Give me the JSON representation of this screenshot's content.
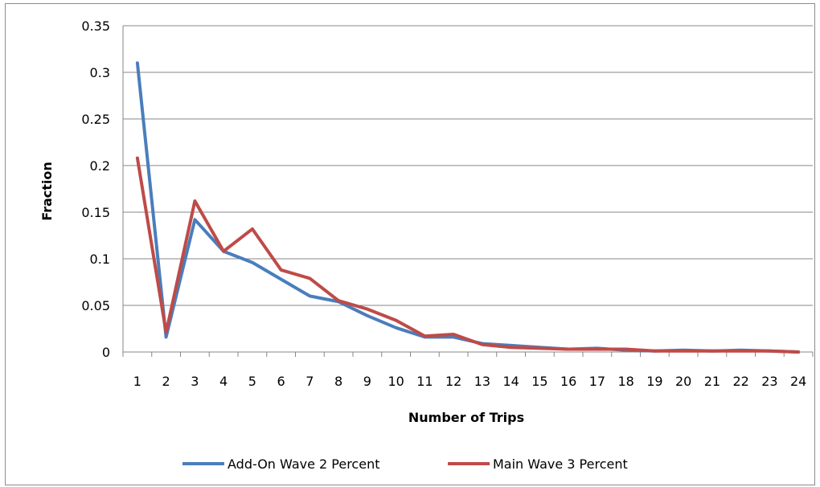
{
  "chart_data": {
    "type": "line",
    "title": "",
    "xlabel": "Number of Trips",
    "ylabel": "Fraction",
    "categories": [
      "1",
      "2",
      "3",
      "4",
      "5",
      "6",
      "7",
      "8",
      "9",
      "10",
      "11",
      "12",
      "13",
      "14",
      "15",
      "16",
      "17",
      "18",
      "19",
      "20",
      "21",
      "22",
      "23",
      "24"
    ],
    "ylim": [
      0,
      0.35
    ],
    "yticks": [
      "0",
      "0.05",
      "0.1",
      "0.15",
      "0.2",
      "0.25",
      "0.3",
      "0.35"
    ],
    "grid": true,
    "legend_position": "bottom",
    "series": [
      {
        "name": "Add-On Wave 2 Percent",
        "color": "#4a7ebb",
        "values": [
          0.31,
          0.016,
          0.142,
          0.108,
          0.096,
          0.078,
          0.06,
          0.054,
          0.039,
          0.026,
          0.016,
          0.016,
          0.009,
          0.007,
          0.005,
          0.003,
          0.004,
          0.002,
          0.001,
          0.002,
          0.001,
          0.002,
          0.001,
          0.0
        ]
      },
      {
        "name": "Main Wave 3 Percent",
        "color": "#be4b48",
        "values": [
          0.208,
          0.021,
          0.162,
          0.108,
          0.132,
          0.088,
          0.079,
          0.055,
          0.046,
          0.034,
          0.017,
          0.019,
          0.008,
          0.005,
          0.004,
          0.003,
          0.003,
          0.003,
          0.001,
          0.001,
          0.001,
          0.001,
          0.001,
          0.0
        ]
      }
    ]
  }
}
